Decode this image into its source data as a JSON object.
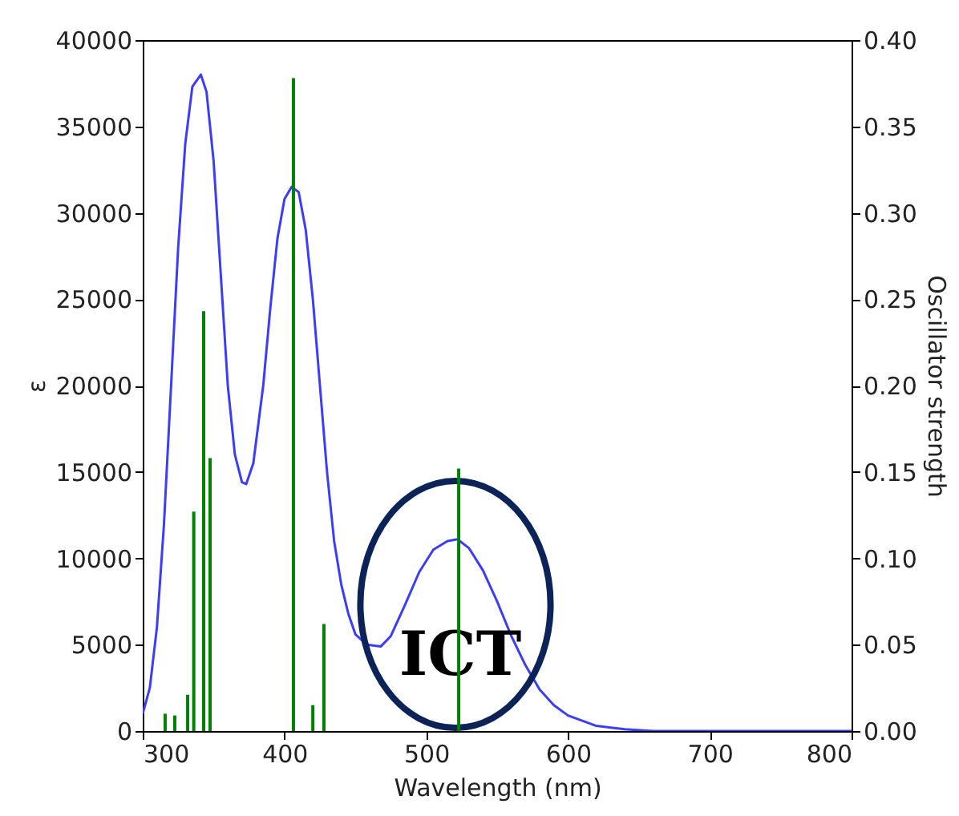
{
  "chart_data": {
    "type": "line",
    "xlabel": "Wavelength (nm)",
    "ylabel": "ε",
    "y2label": "Oscillator strength",
    "xlim": [
      300,
      800
    ],
    "xticks": [
      300,
      400,
      500,
      600,
      700,
      800
    ],
    "ylim": [
      0,
      40000
    ],
    "yticks": [
      0,
      5000,
      10000,
      15000,
      20000,
      25000,
      30000,
      35000,
      40000
    ],
    "y2lim": [
      0,
      0.4
    ],
    "y2ticks": [
      {
        "value": 0,
        "label": "0.00"
      },
      {
        "value": 0.05,
        "label": "0.05"
      },
      {
        "value": 0.1,
        "label": "0.10"
      },
      {
        "value": 0.15,
        "label": "0.15"
      },
      {
        "value": 0.2,
        "label": "0.20"
      },
      {
        "value": 0.25,
        "label": "0.25"
      },
      {
        "value": 0.3,
        "label": "0.30"
      },
      {
        "value": 0.35,
        "label": "0.35"
      },
      {
        "value": 0.4,
        "label": "0.40"
      }
    ],
    "grid": false,
    "annotations": [
      "ICT"
    ],
    "series": [
      {
        "color": "#3c3cff",
        "x": [
          300,
          305,
          310,
          315,
          320,
          325,
          330,
          335,
          341,
          345,
          350,
          355,
          360,
          365,
          370,
          373,
          378,
          385,
          390,
          395,
          400,
          405,
          410,
          415,
          420,
          425,
          430,
          435,
          440,
          445,
          450,
          458,
          468,
          475,
          485,
          495,
          505,
          515,
          522,
          530,
          540,
          550,
          560,
          570,
          580,
          590,
          600,
          620,
          640,
          660,
          700,
          800
        ],
        "values": [
          1000,
          2500,
          6000,
          12000,
          20000,
          28000,
          34000,
          37300,
          38000,
          37000,
          33000,
          26500,
          20000,
          16000,
          14400,
          14300,
          15500,
          20000,
          24500,
          28500,
          30800,
          31500,
          31200,
          29000,
          25000,
          20000,
          15000,
          11000,
          8500,
          6800,
          5600,
          5000,
          4900,
          5500,
          7300,
          9200,
          10500,
          11000,
          11100,
          10600,
          9300,
          7500,
          5500,
          3800,
          2400,
          1500,
          900,
          300,
          100,
          0,
          0,
          0
        ]
      },
      {
        "type": "bar",
        "axis": "y2",
        "color": "#008000",
        "x": [
          315.8,
          322.6,
          331.7,
          336,
          343,
          347.5,
          406.3,
          420,
          427.8,
          522.9
        ],
        "values": [
          0.01,
          0.009,
          0.021,
          0.127,
          0.243,
          0.158,
          0.378,
          0.015,
          0.062,
          0.152
        ]
      }
    ]
  }
}
